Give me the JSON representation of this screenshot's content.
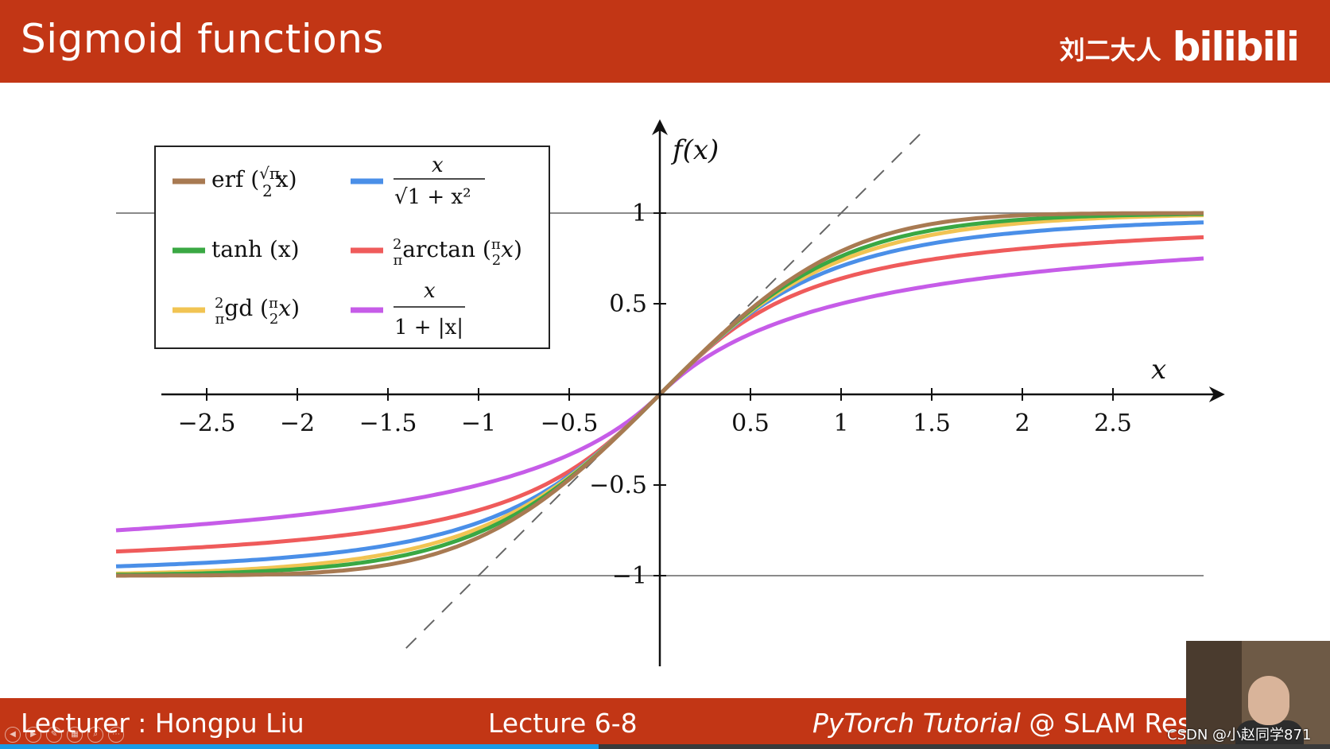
{
  "header": {
    "title": "Sigmoid functions",
    "brand_name": "刘二大人",
    "brand_logo": "bilibili"
  },
  "footer": {
    "lecturer": "Lecturer : Hongpu Liu",
    "lecture": "Lecture 6-8",
    "course_italic": "PyTorch Tutorial",
    "course_rest": " @ SLAM Resea"
  },
  "watermark": "CSDN @小赵同学871",
  "colors": {
    "accent": "#c23615",
    "erf": "#a87a52",
    "algebraic_sqrt": "#4a8fe8",
    "tanh": "#3aa843",
    "arctan": "#ef5b5b",
    "gd": "#f1c453",
    "abs": "#c65ce8"
  },
  "chart_data": {
    "type": "line",
    "ylabel": "f(x)",
    "xlabel": "x",
    "xlim": [
      -3,
      3
    ],
    "ylim": [
      -1.5,
      1.5
    ],
    "x_ticks": [
      -2.5,
      -2,
      -1.5,
      -1,
      -0.5,
      0.5,
      1,
      1.5,
      2,
      2.5
    ],
    "x_tick_labels": [
      "−2.5",
      "−2",
      "−1.5",
      "−1",
      "−0.5",
      "0.5",
      "1",
      "1.5",
      "2",
      "2.5"
    ],
    "y_ticks": [
      1,
      0.5,
      -0.5,
      -1
    ],
    "y_tick_labels": [
      "1",
      "0.5",
      "−0.5",
      "−1"
    ],
    "reference_lines": [
      {
        "kind": "horizontal",
        "y": 1
      },
      {
        "kind": "horizontal",
        "y": -1
      },
      {
        "kind": "dashed",
        "slope": 1
      }
    ],
    "legend_placement": "top-left",
    "x": [
      -3,
      -2.5,
      -2,
      -1.5,
      -1,
      -0.5,
      0,
      0.5,
      1,
      1.5,
      2,
      2.5,
      3
    ],
    "series": [
      {
        "id": "erf",
        "name": "erf(√π/2 x)",
        "color": "#a87a52",
        "values": [
          -1.0,
          -0.999,
          -0.995,
          -0.97,
          -0.843,
          -0.52,
          0,
          0.52,
          0.843,
          0.97,
          0.995,
          0.999,
          1.0
        ]
      },
      {
        "id": "tanh",
        "name": "tanh(x)",
        "color": "#3aa843",
        "values": [
          -0.995,
          -0.987,
          -0.964,
          -0.905,
          -0.762,
          -0.462,
          0,
          0.462,
          0.762,
          0.905,
          0.964,
          0.987,
          0.995
        ]
      },
      {
        "id": "gd",
        "name": "2/π gd(π/2 x)",
        "color": "#f1c453",
        "values": [
          -0.991,
          -0.978,
          -0.947,
          -0.874,
          -0.726,
          -0.446,
          0,
          0.446,
          0.726,
          0.874,
          0.947,
          0.978,
          0.991
        ]
      },
      {
        "id": "sqrt",
        "name": "x/√(1+x²)",
        "color": "#4a8fe8",
        "values": [
          -0.949,
          -0.928,
          -0.894,
          -0.832,
          -0.707,
          -0.447,
          0,
          0.447,
          0.707,
          0.832,
          0.894,
          0.928,
          0.949
        ]
      },
      {
        "id": "arctan",
        "name": "2/π arctan(π/2 x)",
        "color": "#ef5b5b",
        "values": [
          -0.859,
          -0.832,
          -0.79,
          -0.714,
          -0.638,
          -0.425,
          0,
          0.425,
          0.638,
          0.714,
          0.79,
          0.832,
          0.859
        ]
      },
      {
        "id": "abs",
        "name": "x/(1+|x|)",
        "color": "#c65ce8",
        "values": [
          -0.75,
          -0.714,
          -0.667,
          -0.6,
          -0.5,
          -0.333,
          0,
          0.333,
          0.5,
          0.6,
          0.667,
          0.714,
          0.75
        ]
      }
    ]
  }
}
